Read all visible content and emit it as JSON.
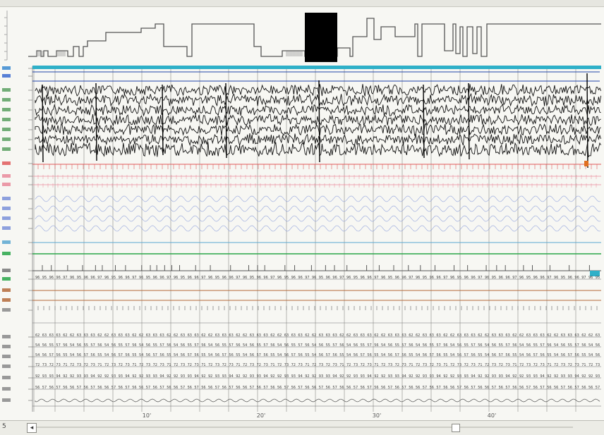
{
  "app": {
    "status_text": "5"
  },
  "hypnogram": {
    "color": "#555555",
    "selection_color": "#000000"
  },
  "timeline": {
    "ticks": [
      "10'",
      "20'",
      "30'",
      "40'"
    ]
  },
  "channels": [
    {
      "group": "emg-top",
      "color": "#2fb0c8"
    },
    {
      "group": "emg-top2",
      "color": "#2244aa"
    },
    {
      "group": "eeg",
      "color": "#111111"
    },
    {
      "group": "ecg",
      "color": "#e05a5a"
    },
    {
      "group": "resp",
      "color": "#e98a9a"
    },
    {
      "group": "effort",
      "color": "#7a90d8"
    },
    {
      "group": "flow",
      "color": "#5aa7d0"
    },
    {
      "group": "spo2",
      "color": "#28a648"
    },
    {
      "group": "events",
      "color": "#555555"
    },
    {
      "group": "limb",
      "color": "#b46a3a"
    }
  ],
  "colors": {
    "grid": "#9a9a94",
    "background": "#f7f7f3",
    "accent_teal": "#2fb0c8",
    "accent_orange": "#e07020"
  }
}
